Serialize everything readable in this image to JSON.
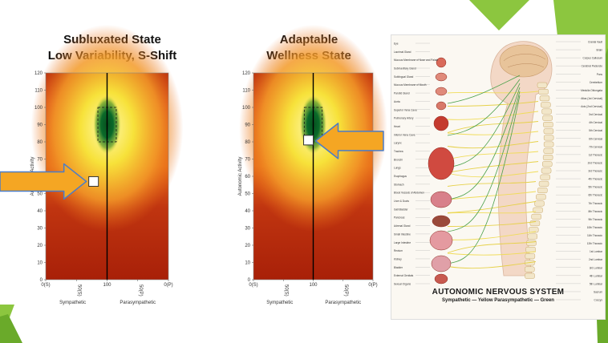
{
  "theme": {
    "accent_green": "#8cc63f",
    "accent_green_dark": "#6aaa2a",
    "arrow_orange": "#f5a623",
    "arrow_blue": "#4a7cc9",
    "heat_dark_red": "#a82008",
    "heat_orange": "#e86a18",
    "heat_yellow": "#f7e23a",
    "heat_pale": "#fff9b0",
    "heat_green": "#0a6a2a"
  },
  "chart_data": [
    {
      "type": "heatmap",
      "title_line1": "Subluxated State",
      "title_line2": "Low Variability, S-Shift",
      "ylabel": "Autonomic Activity",
      "xlabel_left": "Sympathetic",
      "xlabel_right": "Parasympathetic",
      "ylim": [
        0,
        120
      ],
      "yticks": [
        "0",
        "10",
        "20",
        "30",
        "40",
        "50",
        "60",
        "70",
        "80",
        "90",
        "100",
        "110",
        "120"
      ],
      "xlim": [
        0,
        200
      ],
      "xticks": [
        {
          "value": 0,
          "label": "0(S)",
          "rotated": false
        },
        {
          "value": 50,
          "label": "50(S)",
          "rotated": true
        },
        {
          "value": 100,
          "label": "100",
          "rotated": false
        },
        {
          "value": 150,
          "label": "50(P)",
          "rotated": true
        },
        {
          "value": 200,
          "label": "0(P)",
          "rotated": false
        }
      ],
      "optimal_zone": {
        "x": [
          85,
          115
        ],
        "y": [
          80,
          100
        ]
      },
      "marker": {
        "x": 78,
        "y": 57
      },
      "arrow_direction": "right"
    },
    {
      "type": "heatmap",
      "title_line1": "Adaptable",
      "title_line2": "Wellness State",
      "ylabel": "Autonomic Activity",
      "xlabel_left": "Sympathetic",
      "xlabel_right": "Parasympathetic",
      "ylim": [
        0,
        120
      ],
      "yticks": [
        "0",
        "10",
        "20",
        "30",
        "40",
        "50",
        "60",
        "70",
        "80",
        "90",
        "100",
        "110",
        "120"
      ],
      "xlim": [
        0,
        200
      ],
      "xticks": [
        {
          "value": 0,
          "label": "0(S)",
          "rotated": false
        },
        {
          "value": 50,
          "label": "50(S)",
          "rotated": true
        },
        {
          "value": 100,
          "label": "100",
          "rotated": false
        },
        {
          "value": 150,
          "label": "50(P)",
          "rotated": true
        },
        {
          "value": 200,
          "label": "0(P)",
          "rotated": false
        }
      ],
      "optimal_zone": {
        "x": [
          85,
          115
        ],
        "y": [
          80,
          100
        ]
      },
      "marker": {
        "x": 92,
        "y": 81
      },
      "arrow_direction": "left"
    }
  ],
  "poster": {
    "title": "AUTONOMIC NERVOUS SYSTEM",
    "subtitle": "Sympathetic — Yellow   Parasympathetic — Green",
    "left_labels": [
      "Eye",
      "Lacrimal Gland",
      "Mucous Membrane of Nose and Palate",
      "Submaxillary Gland",
      "Sublingual Gland",
      "Mucous Membrane of Mouth",
      "Parotid Gland",
      "Aorta",
      "Superior Vena Cava",
      "Pulmonary Artery",
      "Heart",
      "Inferior Vena Cava",
      "Larynx",
      "Trachea",
      "Bronchi",
      "Lungs",
      "Esophagus",
      "Stomach",
      "Blood Vessels of Abdomen",
      "Liver & Ducts",
      "Gall Bladder",
      "Pancreas",
      "Adrenal Gland",
      "Small Intestine",
      "Large Intestine",
      "Rectum",
      "Kidney",
      "Bladder",
      "External Genitals",
      "Sexual Organs"
    ],
    "right_labels": [
      "Cranial Vault",
      "Brain",
      "Corpus Callosum",
      "Cerebral Peduncle",
      "Pons",
      "Cerebellum",
      "Medulla Oblongata",
      "Atlas (1st Cervical)",
      "Axis (2nd Cervical)",
      "3rd Cervical",
      "4th Cervical",
      "5th Cervical",
      "6th Cervical",
      "7th Cervical",
      "1st Thoracic",
      "2nd Thoracic",
      "3rd Thoracic",
      "4th Thoracic",
      "5th Thoracic",
      "6th Thoracic",
      "7th Thoracic",
      "8th Thoracic",
      "9th Thoracic",
      "10th Thoracic",
      "11th Thoracic",
      "12th Thoracic",
      "1st Lumbar",
      "2nd Lumbar",
      "3rd Lumbar",
      "4th Lumbar",
      "5th Lumbar",
      "Sacrum",
      "Coccyx"
    ]
  }
}
